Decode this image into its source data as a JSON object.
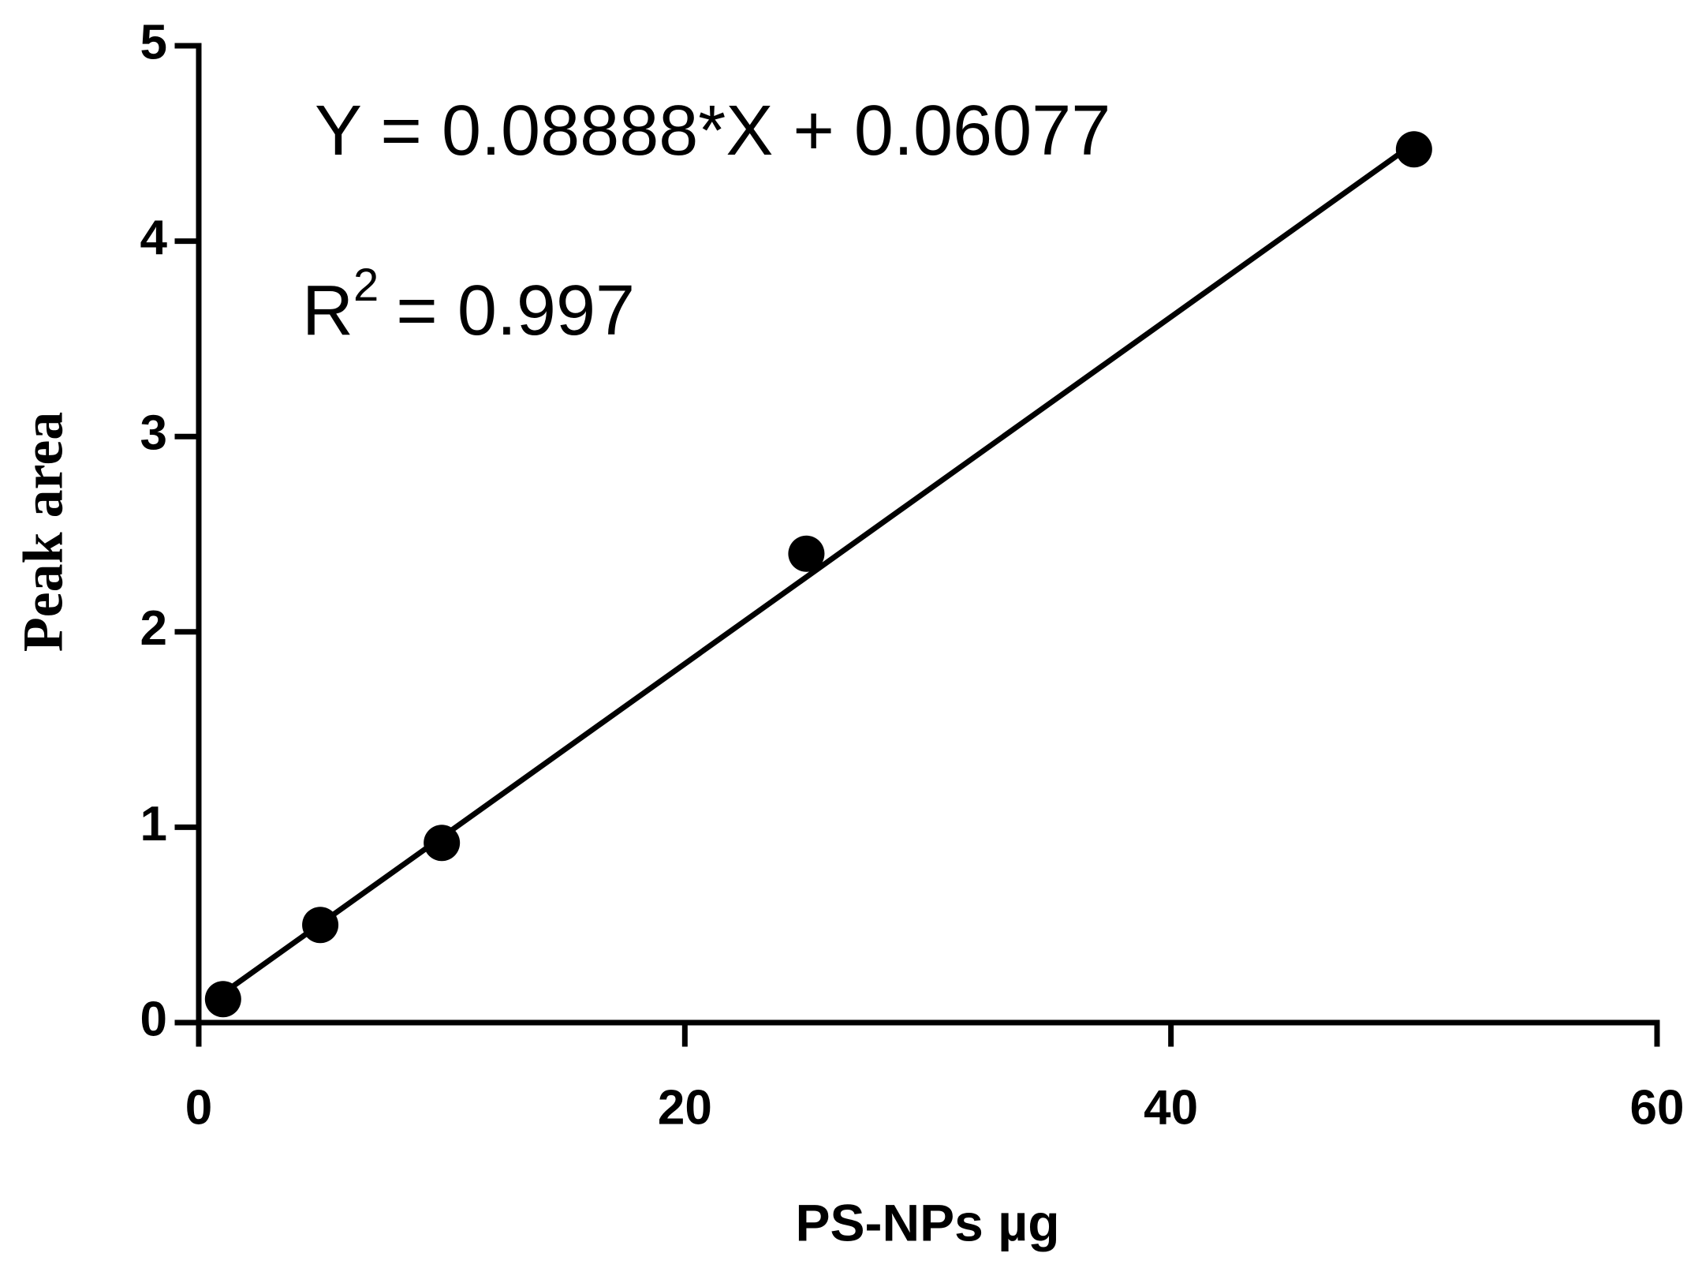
{
  "chart_data": {
    "type": "scatter",
    "x_label": "PS-NPs µg",
    "y_label": "Peak area",
    "equation": "Y = 0.08888*X + 0.06077",
    "r_squared": {
      "base": "R",
      "sup": "2",
      "rest": "= 0.997"
    },
    "x": [
      1,
      5,
      10,
      25,
      50
    ],
    "values": [
      0.12,
      0.5,
      0.92,
      2.4,
      4.47
    ],
    "color": "#000000",
    "fit": {
      "x": [
        1,
        50
      ],
      "values": [
        0.15,
        4.5
      ]
    },
    "xlim": [
      0,
      60
    ],
    "xticks": [
      0,
      20,
      40,
      60
    ],
    "ylim": [
      0,
      5
    ],
    "yticks": [
      0,
      1,
      2,
      3,
      4,
      5
    ],
    "grid": false
  }
}
